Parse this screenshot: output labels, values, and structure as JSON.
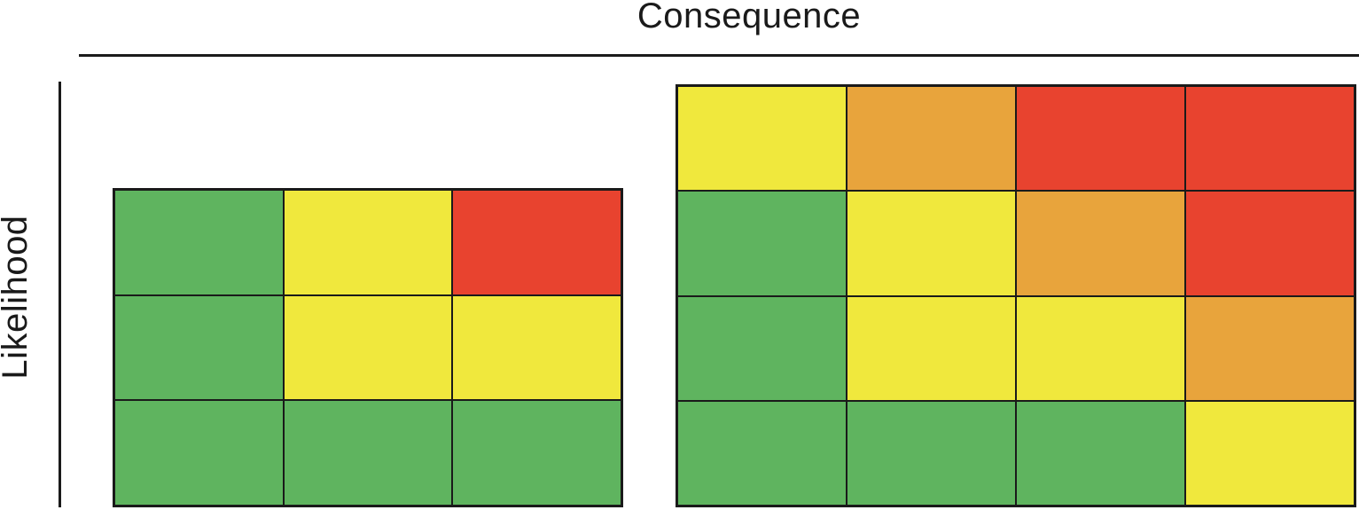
{
  "axes": {
    "x_title": "Consequence",
    "y_title": "Likelihood"
  },
  "palette": {
    "green": "#5FB45F",
    "yellow": "#F0E83D",
    "orange": "#E8A43C",
    "red": "#E8432F",
    "border": "#1A1A1A"
  },
  "chart_data": [
    {
      "type": "heatmap",
      "name": "3x3-risk-matrix",
      "title": "",
      "xlabel": "Consequence",
      "ylabel": "Likelihood",
      "rows": 3,
      "cols": 3,
      "row_order": "top-to-bottom (highest likelihood first)",
      "cells": [
        [
          "green",
          "yellow",
          "red"
        ],
        [
          "green",
          "yellow",
          "yellow"
        ],
        [
          "green",
          "green",
          "green"
        ]
      ]
    },
    {
      "type": "heatmap",
      "name": "4x4-risk-matrix",
      "title": "",
      "xlabel": "Consequence",
      "ylabel": "Likelihood",
      "rows": 4,
      "cols": 4,
      "row_order": "top-to-bottom (highest likelihood first)",
      "cells": [
        [
          "yellow",
          "orange",
          "red",
          "red"
        ],
        [
          "green",
          "yellow",
          "orange",
          "red"
        ],
        [
          "green",
          "yellow",
          "yellow",
          "orange"
        ],
        [
          "green",
          "green",
          "green",
          "yellow"
        ]
      ]
    }
  ]
}
